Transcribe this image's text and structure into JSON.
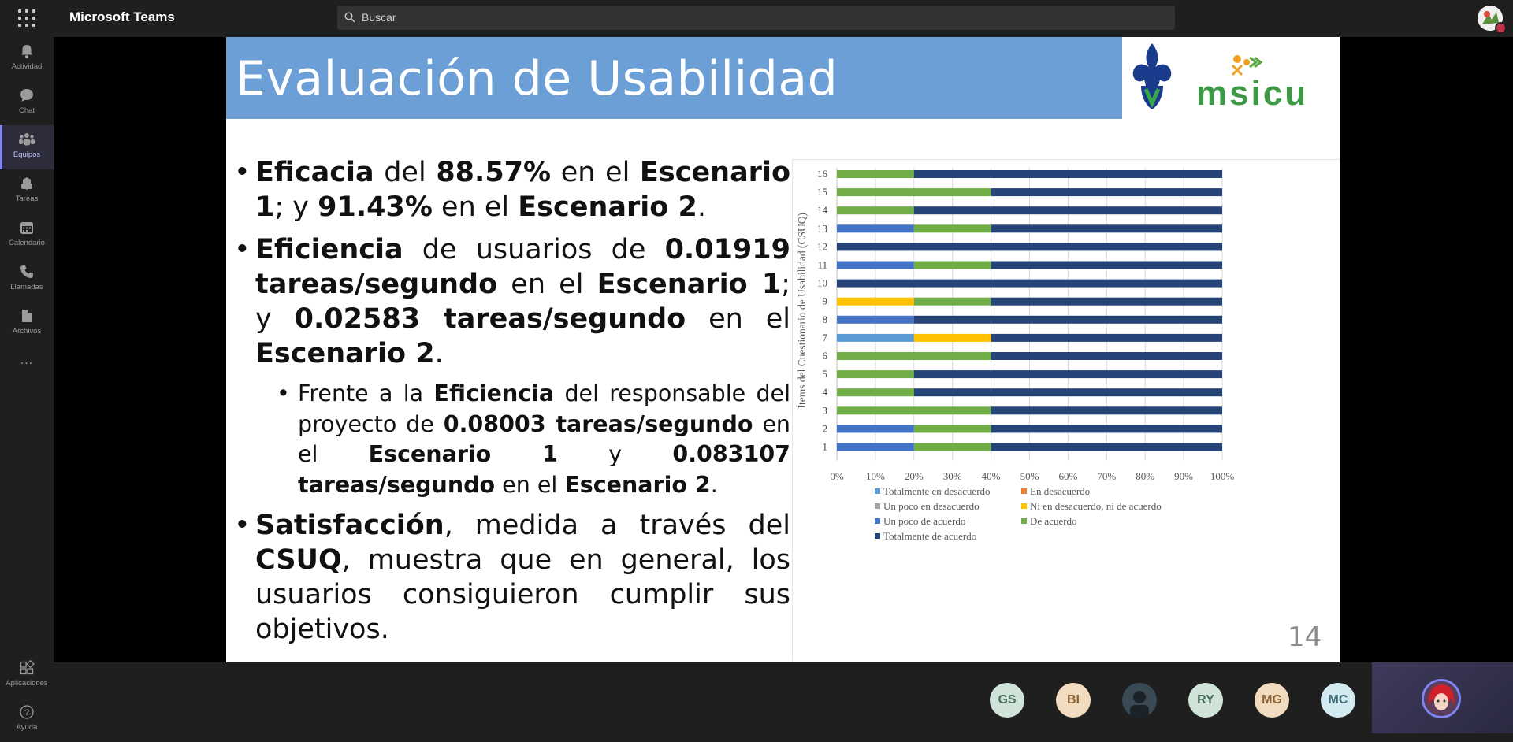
{
  "app": {
    "title": "Microsoft Teams",
    "search_placeholder": "Buscar"
  },
  "rail": {
    "items": [
      {
        "label": "Actividad",
        "icon": "bell-icon"
      },
      {
        "label": "Chat",
        "icon": "chat-icon"
      },
      {
        "label": "Equipos",
        "icon": "teams-icon",
        "active": true
      },
      {
        "label": "Tareas",
        "icon": "tasks-icon"
      },
      {
        "label": "Calendario",
        "icon": "calendar-icon"
      },
      {
        "label": "Llamadas",
        "icon": "phone-icon"
      },
      {
        "label": "Archivos",
        "icon": "file-icon"
      }
    ],
    "more": "...",
    "bottom": [
      {
        "label": "Aplicaciones",
        "icon": "apps-icon"
      },
      {
        "label": "Ayuda",
        "icon": "help-icon"
      }
    ]
  },
  "slide": {
    "title": "Evaluación de Usabilidad",
    "logo_text": "msicu",
    "page_number": "14"
  },
  "chart_data": {
    "type": "bar",
    "orientation": "horizontal-stacked-100",
    "ylabel": "Ítems del Cuestionario de Usabilidad (CSUQ)",
    "categories": [
      "16",
      "15",
      "14",
      "13",
      "12",
      "11",
      "10",
      "9",
      "8",
      "7",
      "6",
      "5",
      "4",
      "3",
      "2",
      "1"
    ],
    "xlim": [
      0,
      100
    ],
    "xticks": [
      "0%",
      "10%",
      "20%",
      "30%",
      "40%",
      "50%",
      "60%",
      "70%",
      "80%",
      "90%",
      "100%"
    ],
    "grid": true,
    "legend_position": "bottom",
    "series": [
      {
        "name": "Totalmente en desacuerdo",
        "color": "#5b9bd5",
        "values": [
          0,
          0,
          0,
          0,
          0,
          0,
          0,
          0,
          0,
          20,
          0,
          0,
          0,
          0,
          0,
          0
        ]
      },
      {
        "name": "En desacuerdo",
        "color": "#ed7d31",
        "values": [
          0,
          0,
          0,
          0,
          0,
          0,
          0,
          0,
          0,
          0,
          0,
          0,
          0,
          0,
          0,
          0
        ]
      },
      {
        "name": "Un poco en desacuerdo",
        "color": "#a5a5a5",
        "values": [
          0,
          0,
          0,
          0,
          0,
          0,
          0,
          0,
          0,
          0,
          0,
          0,
          0,
          0,
          0,
          0
        ]
      },
      {
        "name": "Ni en desacuerdo, ni de acuerdo",
        "color": "#ffc000",
        "values": [
          0,
          0,
          0,
          0,
          0,
          0,
          0,
          20,
          0,
          20,
          0,
          0,
          0,
          0,
          0,
          0
        ]
      },
      {
        "name": "Un poco de acuerdo",
        "color": "#4472c4",
        "values": [
          0,
          0,
          0,
          20,
          0,
          20,
          0,
          0,
          20,
          0,
          0,
          0,
          0,
          0,
          20,
          20
        ]
      },
      {
        "name": "De acuerdo",
        "color": "#70ad47",
        "values": [
          20,
          40,
          20,
          20,
          0,
          20,
          0,
          20,
          0,
          0,
          40,
          20,
          20,
          40,
          20,
          20
        ]
      },
      {
        "name": "Totalmente de acuerdo",
        "color": "#264478",
        "values": [
          80,
          60,
          80,
          60,
          100,
          60,
          100,
          60,
          80,
          60,
          60,
          80,
          80,
          60,
          60,
          60
        ]
      }
    ]
  },
  "participants": [
    {
      "initials": "GS",
      "bg": "#cfe3d8",
      "fg": "#4a6d5a"
    },
    {
      "initials": "BI",
      "bg": "#f2dcc0",
      "fg": "#8a6234"
    },
    {
      "initials": "",
      "bg": "#3a4a55",
      "fg": "#ffffff"
    },
    {
      "initials": "RY",
      "bg": "#cfe3d8",
      "fg": "#4a6d5a"
    },
    {
      "initials": "MG",
      "bg": "#f2dcc0",
      "fg": "#8a6234"
    },
    {
      "initials": "MC",
      "bg": "#d3eaf0",
      "fg": "#3e6a78"
    }
  ]
}
